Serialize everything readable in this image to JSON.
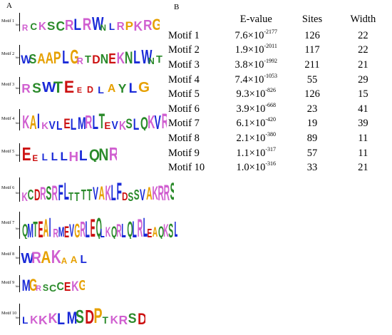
{
  "panel_a": {
    "letter": "A",
    "axis_label": "bits",
    "motifs": [
      {
        "label": "Motif 1",
        "logo": "RCKSCRLRWNLRPKRG"
      },
      {
        "label": "Motif 2",
        "logo": "WSAAPLGRTDNEKNLWNT"
      },
      {
        "label": "Motif 3",
        "logo": "RSWTEEDLAYLG"
      },
      {
        "label": "Motif 4",
        "logo": "KAIKVLELMRLTEVKSLQKVR"
      },
      {
        "label": "Motif 5",
        "logo": "EELLLHLQNR"
      },
      {
        "label": "Motif 6",
        "logo": "KCDRSRFLTTTTVAKLFDSSVAKRRS"
      },
      {
        "label": "Motif 7",
        "logo": "QMTEAIRMEVGRLEQLKQRLQLRLEAQKSL"
      },
      {
        "label": "Motif 8",
        "logo": "WRAKAAL"
      },
      {
        "label": "Motif 9",
        "logo": "MGRSCCEKG"
      },
      {
        "label": "Motif 10",
        "logo": "LKKKLMSDPTKRSD"
      }
    ]
  },
  "panel_b": {
    "letter": "B",
    "headers": {
      "name": "",
      "evalue": "E-value",
      "sites": "Sites",
      "width": "Width"
    },
    "rows": [
      {
        "name": "Motif 1",
        "mantissa": "7.6",
        "times": "×10",
        "exponent": "-2177",
        "sites": "126",
        "width": "22"
      },
      {
        "name": "Motif 2",
        "mantissa": "1.9",
        "times": "×10",
        "exponent": "-2011",
        "sites": "117",
        "width": "22"
      },
      {
        "name": "Motif 3",
        "mantissa": "3.8",
        "times": "×10",
        "exponent": "-1992",
        "sites": "211",
        "width": "21"
      },
      {
        "name": "Motif 4",
        "mantissa": "7.4",
        "times": "×10",
        "exponent": "-1053",
        "sites": "55",
        "width": "29"
      },
      {
        "name": "Motif 5",
        "mantissa": "9.3",
        "times": "×10",
        "exponent": "-826",
        "sites": "126",
        "width": "15"
      },
      {
        "name": "Motif 6",
        "mantissa": "3.9",
        "times": "×10",
        "exponent": "-668",
        "sites": "23",
        "width": "41"
      },
      {
        "name": "Motif 7",
        "mantissa": "6.1",
        "times": "×10",
        "exponent": "-420",
        "sites": "19",
        "width": "39"
      },
      {
        "name": "Motif 8",
        "mantissa": "2.1",
        "times": "×10",
        "exponent": "-380",
        "sites": "89",
        "width": "11"
      },
      {
        "name": "Motif 9",
        "mantissa": "1.1",
        "times": "×10",
        "exponent": "-317",
        "sites": "57",
        "width": "11"
      },
      {
        "name": "Motif 10",
        "mantissa": "1.0",
        "times": "×10",
        "exponent": "-316",
        "sites": "33",
        "width": "21"
      }
    ]
  },
  "colors": {
    "A": "#e6a000",
    "C": "#2a8a2a",
    "D": "#cc1111",
    "E": "#cc1111",
    "F": "#1a2ad8",
    "G": "#e6a000",
    "H": "#d05fd0",
    "I": "#1a2ad8",
    "K": "#d05fd0",
    "L": "#1a2ad8",
    "M": "#1a2ad8",
    "N": "#2a8a2a",
    "P": "#e6a000",
    "Q": "#2a8a2a",
    "R": "#d05fd0",
    "S": "#2a8a2a",
    "T": "#2a8a2a",
    "V": "#1a2ad8",
    "W": "#1a2ad8",
    "Y": "#2a8a2a"
  }
}
